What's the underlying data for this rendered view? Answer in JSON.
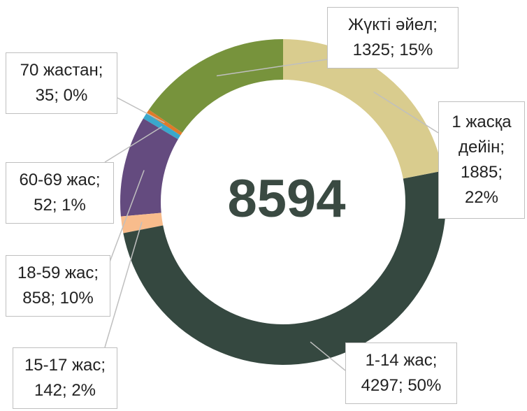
{
  "chart_data": {
    "type": "donut",
    "values": [
      1885,
      4297,
      142,
      858,
      52,
      35,
      1325
    ],
    "value_labels": [
      "1 жасқа дейін; 1885; 22%",
      "1-14 жас; 4297; 50%",
      "15-17 жас; 142; 2%",
      "18-59 жас; 858; 10%",
      "60-69 жас; 52; 1%",
      "70 жастан; 35; 0%",
      "Жүкті әйел; 1325; 15%"
    ],
    "colors": [
      "#d9cc8e",
      "#354840",
      "#f8bc8c",
      "#644b7f",
      "#3aa8cc",
      "#e07a2a",
      "#77933c"
    ],
    "total": 8594
  }
}
